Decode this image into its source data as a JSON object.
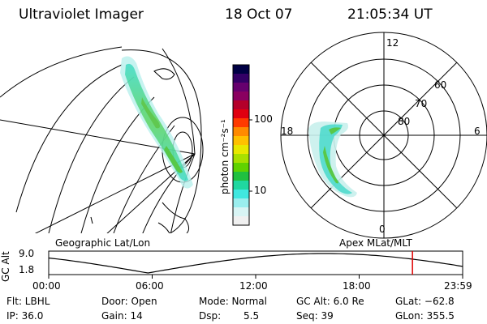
{
  "header": {
    "title": "Ultraviolet Imager",
    "date": "18 Oct 07",
    "time": "21:05:34 UT"
  },
  "colorbar": {
    "unit_label": "photon cm⁻²s⁻¹",
    "tick_labels": [
      "100",
      "10"
    ],
    "colors": [
      "#000044",
      "#330066",
      "#66006e",
      "#8a0060",
      "#b4002a",
      "#e00010",
      "#ff3a00",
      "#ff8a00",
      "#ffc000",
      "#e8e800",
      "#a8e000",
      "#60d200",
      "#20c040",
      "#20d8a0",
      "#40e8e0",
      "#9aeeee",
      "#d8f4f4",
      "#f0f0f0"
    ]
  },
  "geo_panel": {
    "label": "Geographic Lat/Lon"
  },
  "polar_panel": {
    "label": "Apex  MLat/MLT",
    "mlt_labels": {
      "top": "12",
      "left": "18",
      "right": "6",
      "bottom": "0"
    },
    "lat_labels": [
      "60",
      "70",
      "80"
    ]
  },
  "timeline": {
    "ylabel": "GC Alt",
    "y_ticks": [
      "9.0",
      "1.8"
    ],
    "x_ticks": [
      "00:00",
      "06:00",
      "12:00",
      "18:00",
      "23:59"
    ],
    "current_time_hours": 21.09,
    "marker_color": "#e00000"
  },
  "footer": {
    "flt": "Flt: LBHL",
    "door": "Door: Open",
    "mode": "Mode: Normal",
    "gc_alt": "GC Alt: 6.0 Re",
    "glat": "GLat: −62.8",
    "ip": "IP: 36.0",
    "gain": "Gain: 14",
    "dsp_label": "Dsp:",
    "dsp_value": "5.5",
    "seq": "Seq: 39",
    "glon": "GLon: 355.5"
  }
}
